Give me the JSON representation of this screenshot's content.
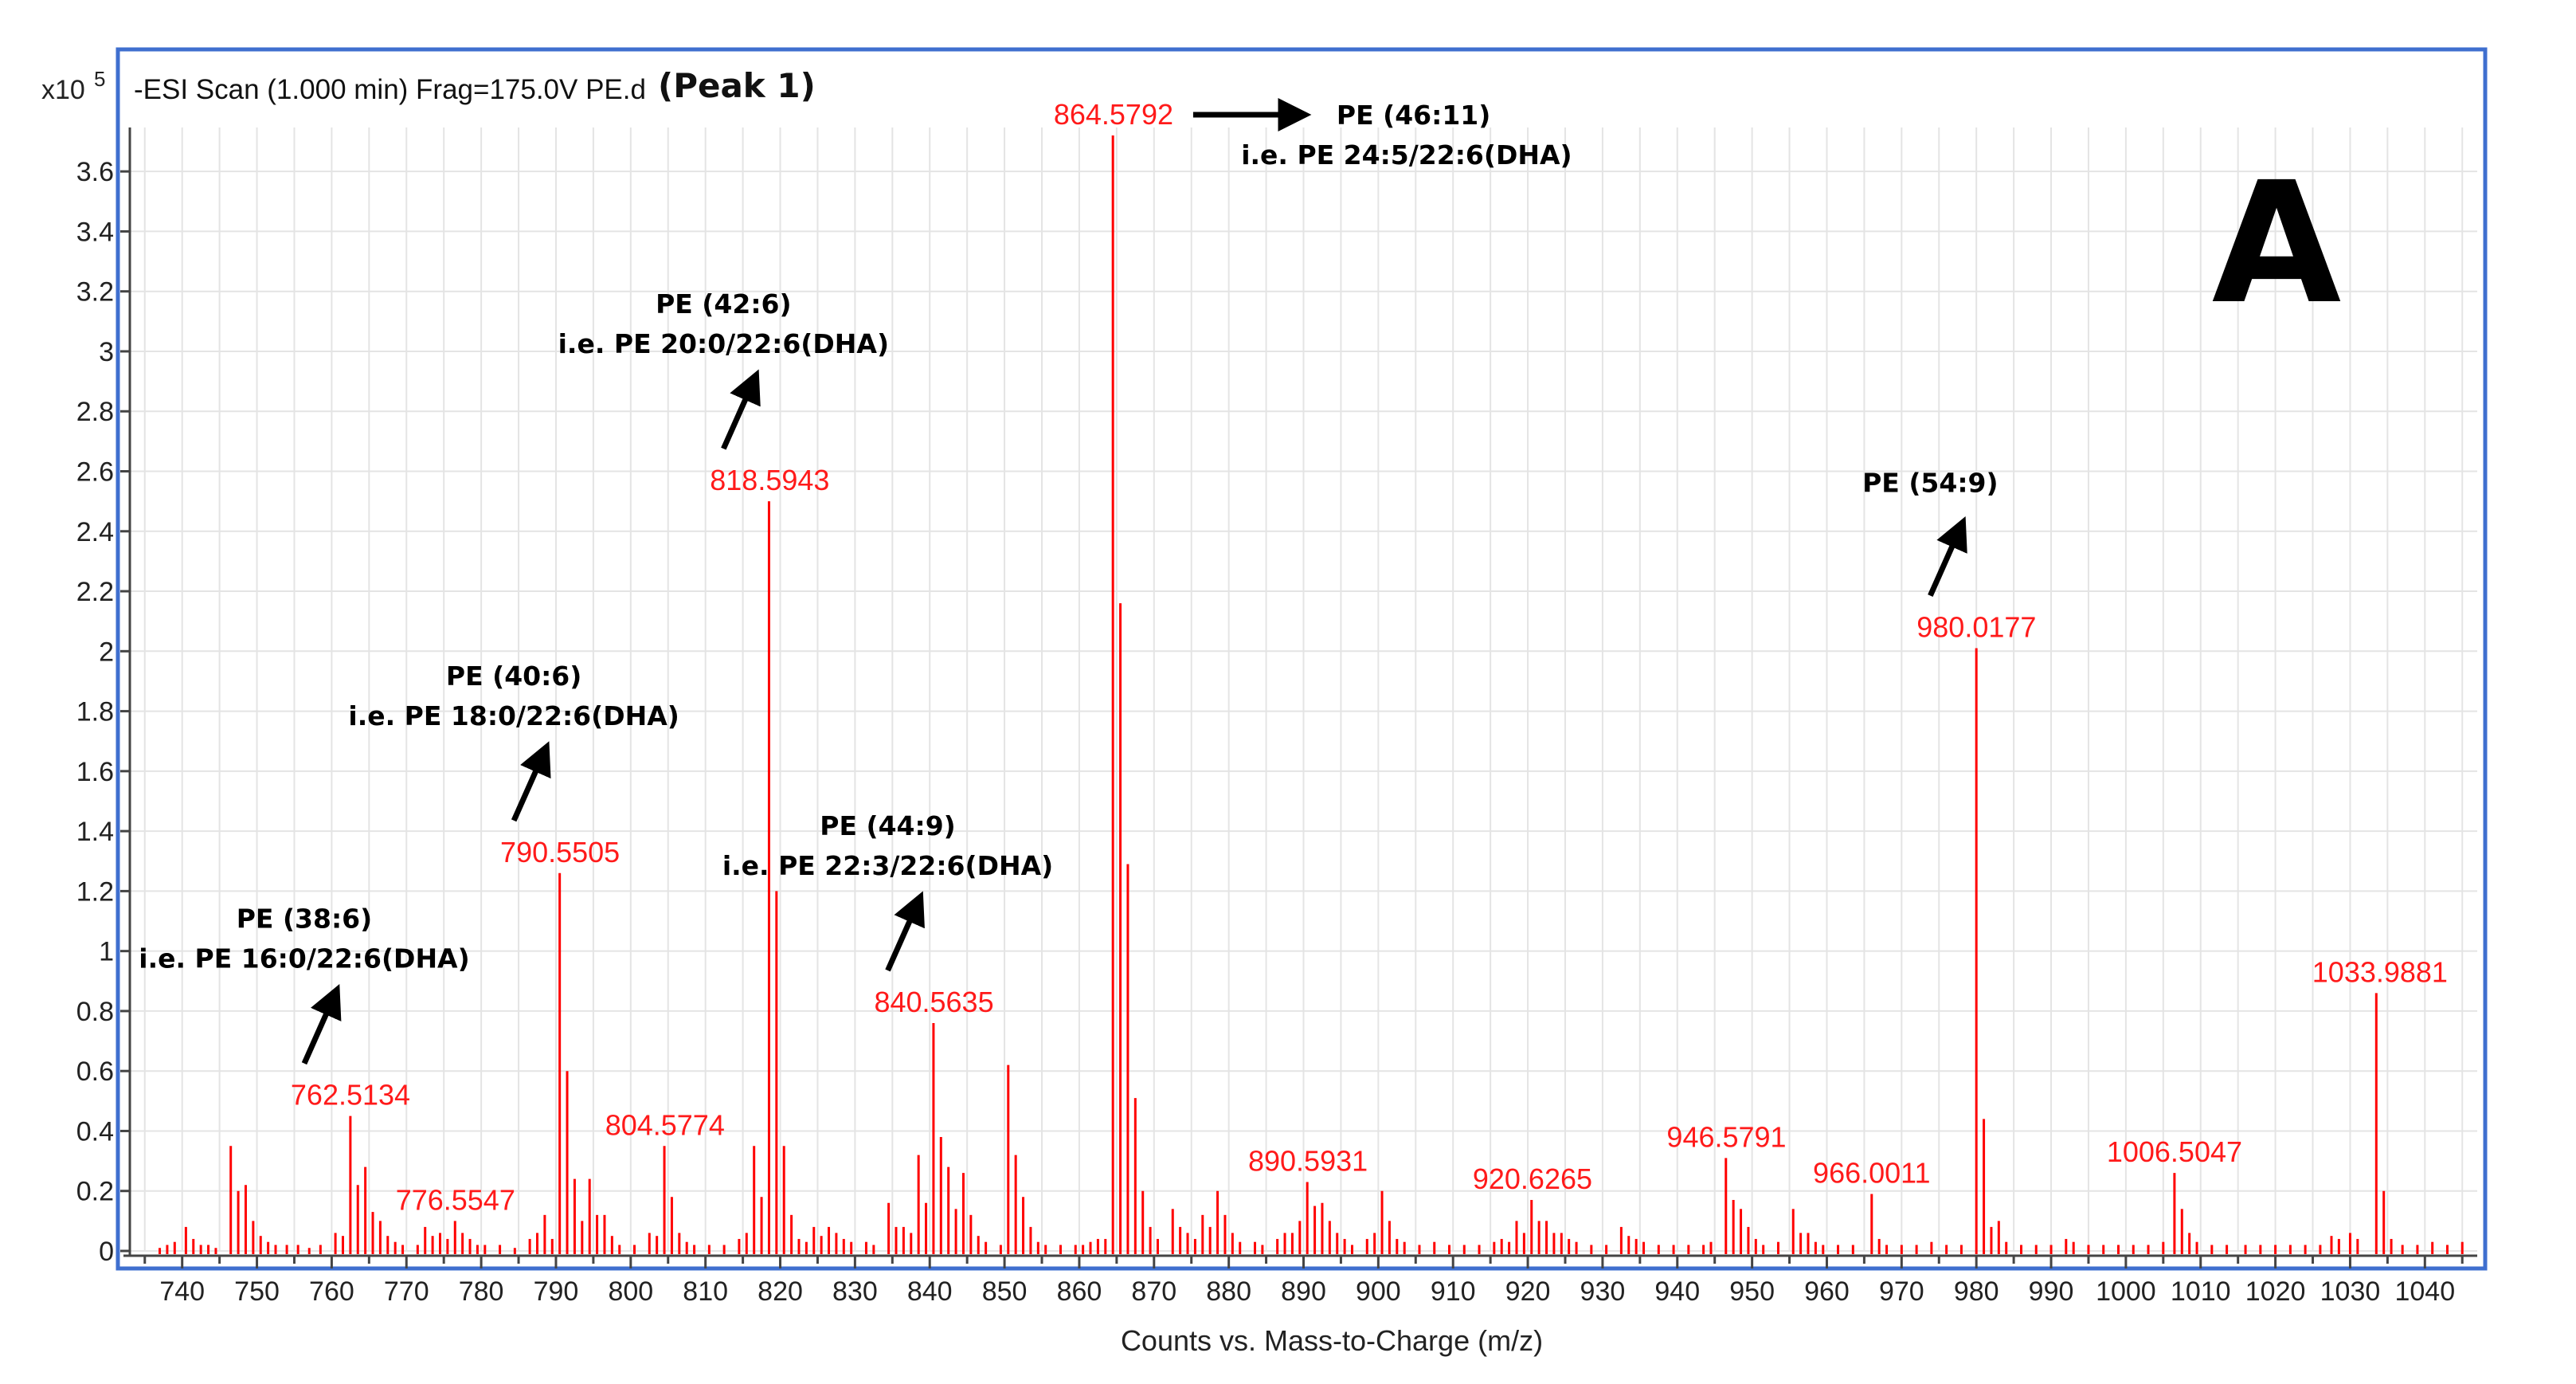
{
  "header": {
    "scale_base": "x10",
    "scale_exp": "5",
    "scan_info": "-ESI Scan (1.000 min) Frag=175.0V PE.d",
    "peak_title": "(Peak 1)"
  },
  "panel_letter": "A",
  "chart_data": {
    "type": "bar",
    "subtype": "mass-spectrum-stick",
    "title": "-ESI Scan (1.000 min) Frag=175.0V PE.d (Peak 1)",
    "xlabel": "Counts vs. Mass-to-Charge (m/z)",
    "ylabel": "x10^5",
    "xlim": [
      733,
      1047
    ],
    "ylim": [
      0,
      3.72
    ],
    "x_ticks": [
      740,
      750,
      760,
      770,
      780,
      790,
      800,
      810,
      820,
      830,
      840,
      850,
      860,
      870,
      880,
      890,
      900,
      910,
      920,
      930,
      940,
      950,
      960,
      970,
      980,
      990,
      1000,
      1010,
      1020,
      1030,
      1040
    ],
    "y_ticks": [
      0,
      0.2,
      0.4,
      0.6,
      0.8,
      1,
      1.2,
      1.4,
      1.6,
      1.8,
      2,
      2.2,
      2.4,
      2.6,
      2.8,
      3,
      3.2,
      3.4,
      3.6
    ],
    "grid": true,
    "color": "#ff0000",
    "labeled_peaks": [
      {
        "mz": 762.5134,
        "intensity": 0.45,
        "label": "762.5134"
      },
      {
        "mz": 776.5547,
        "intensity": 0.1,
        "label": "776.5547"
      },
      {
        "mz": 790.5505,
        "intensity": 1.26,
        "label": "790.5505"
      },
      {
        "mz": 804.5774,
        "intensity": 0.35,
        "label": "804.5774"
      },
      {
        "mz": 818.5943,
        "intensity": 2.5,
        "label": "818.5943"
      },
      {
        "mz": 840.5635,
        "intensity": 0.76,
        "label": "840.5635"
      },
      {
        "mz": 864.5792,
        "intensity": 3.72,
        "label": "864.5792"
      },
      {
        "mz": 890.5931,
        "intensity": 0.23,
        "label": "890.5931"
      },
      {
        "mz": 920.6265,
        "intensity": 0.17,
        "label": "920.6265"
      },
      {
        "mz": 946.5791,
        "intensity": 0.31,
        "label": "946.5791"
      },
      {
        "mz": 966.0011,
        "intensity": 0.19,
        "label": "966.0011"
      },
      {
        "mz": 980.0177,
        "intensity": 2.01,
        "label": "980.0177"
      },
      {
        "mz": 1006.5047,
        "intensity": 0.26,
        "label": "1006.5047"
      },
      {
        "mz": 1033.9881,
        "intensity": 0.86,
        "label": "1033.9881"
      }
    ],
    "peaks": [
      [
        737,
        0.01
      ],
      [
        738,
        0.02
      ],
      [
        739,
        0.03
      ],
      [
        740.5,
        0.08
      ],
      [
        741.5,
        0.04
      ],
      [
        742.5,
        0.02
      ],
      [
        743.5,
        0.02
      ],
      [
        744.5,
        0.01
      ],
      [
        746.5,
        0.35
      ],
      [
        747.5,
        0.2
      ],
      [
        748.5,
        0.22
      ],
      [
        749.5,
        0.1
      ],
      [
        750.5,
        0.05
      ],
      [
        751.5,
        0.03
      ],
      [
        752.5,
        0.02
      ],
      [
        754,
        0.02
      ],
      [
        755.5,
        0.02
      ],
      [
        757,
        0.01
      ],
      [
        758.5,
        0.02
      ],
      [
        760.5,
        0.06
      ],
      [
        761.5,
        0.05
      ],
      [
        762.5,
        0.45
      ],
      [
        763.5,
        0.22
      ],
      [
        764.5,
        0.28
      ],
      [
        765.5,
        0.13
      ],
      [
        766.5,
        0.1
      ],
      [
        767.5,
        0.05
      ],
      [
        768.5,
        0.03
      ],
      [
        769.5,
        0.02
      ],
      [
        771.5,
        0.02
      ],
      [
        772.5,
        0.08
      ],
      [
        773.5,
        0.05
      ],
      [
        774.5,
        0.06
      ],
      [
        775.5,
        0.04
      ],
      [
        776.5,
        0.1
      ],
      [
        777.5,
        0.06
      ],
      [
        778.5,
        0.04
      ],
      [
        779.5,
        0.02
      ],
      [
        780.5,
        0.02
      ],
      [
        782.5,
        0.02
      ],
      [
        784.5,
        0.01
      ],
      [
        786.5,
        0.04
      ],
      [
        787.5,
        0.06
      ],
      [
        788.5,
        0.12
      ],
      [
        789.5,
        0.04
      ],
      [
        790.5,
        1.26
      ],
      [
        791.5,
        0.6
      ],
      [
        792.5,
        0.24
      ],
      [
        793.5,
        0.1
      ],
      [
        794.5,
        0.24
      ],
      [
        795.5,
        0.12
      ],
      [
        796.5,
        0.12
      ],
      [
        797.5,
        0.05
      ],
      [
        798.5,
        0.02
      ],
      [
        800.5,
        0.02
      ],
      [
        802.5,
        0.06
      ],
      [
        803.5,
        0.05
      ],
      [
        804.5,
        0.35
      ],
      [
        805.5,
        0.18
      ],
      [
        806.5,
        0.06
      ],
      [
        807.5,
        0.03
      ],
      [
        808.5,
        0.02
      ],
      [
        810.5,
        0.02
      ],
      [
        812.5,
        0.02
      ],
      [
        814.5,
        0.04
      ],
      [
        815.5,
        0.06
      ],
      [
        816.5,
        0.35
      ],
      [
        817.5,
        0.18
      ],
      [
        818.5,
        2.5
      ],
      [
        819.5,
        1.2
      ],
      [
        820.5,
        0.35
      ],
      [
        821.5,
        0.12
      ],
      [
        822.5,
        0.04
      ],
      [
        823.5,
        0.03
      ],
      [
        824.5,
        0.08
      ],
      [
        825.5,
        0.05
      ],
      [
        826.5,
        0.08
      ],
      [
        827.5,
        0.06
      ],
      [
        828.5,
        0.04
      ],
      [
        829.5,
        0.03
      ],
      [
        831.5,
        0.03
      ],
      [
        832.5,
        0.02
      ],
      [
        834.5,
        0.16
      ],
      [
        835.5,
        0.08
      ],
      [
        836.5,
        0.08
      ],
      [
        837.5,
        0.06
      ],
      [
        838.5,
        0.32
      ],
      [
        839.5,
        0.16
      ],
      [
        840.5,
        0.76
      ],
      [
        841.5,
        0.38
      ],
      [
        842.5,
        0.28
      ],
      [
        843.5,
        0.14
      ],
      [
        844.5,
        0.26
      ],
      [
        845.5,
        0.12
      ],
      [
        846.5,
        0.05
      ],
      [
        847.5,
        0.03
      ],
      [
        849.5,
        0.02
      ],
      [
        850.5,
        0.62
      ],
      [
        851.5,
        0.32
      ],
      [
        852.5,
        0.18
      ],
      [
        853.5,
        0.08
      ],
      [
        854.5,
        0.03
      ],
      [
        855.5,
        0.02
      ],
      [
        857.5,
        0.02
      ],
      [
        859.5,
        0.02
      ],
      [
        860.5,
        0.02
      ],
      [
        861.5,
        0.03
      ],
      [
        862.5,
        0.04
      ],
      [
        863.5,
        0.04
      ],
      [
        864.5,
        3.72
      ],
      [
        865.5,
        2.16
      ],
      [
        866.5,
        1.29
      ],
      [
        867.5,
        0.51
      ],
      [
        868.5,
        0.2
      ],
      [
        869.5,
        0.08
      ],
      [
        870.5,
        0.04
      ],
      [
        872.5,
        0.14
      ],
      [
        873.5,
        0.08
      ],
      [
        874.5,
        0.06
      ],
      [
        875.5,
        0.04
      ],
      [
        876.5,
        0.12
      ],
      [
        877.5,
        0.08
      ],
      [
        878.5,
        0.2
      ],
      [
        879.5,
        0.12
      ],
      [
        880.5,
        0.06
      ],
      [
        881.5,
        0.03
      ],
      [
        883.5,
        0.03
      ],
      [
        884.5,
        0.02
      ],
      [
        886.5,
        0.04
      ],
      [
        887.5,
        0.06
      ],
      [
        888.5,
        0.06
      ],
      [
        889.5,
        0.1
      ],
      [
        890.5,
        0.23
      ],
      [
        891.5,
        0.15
      ],
      [
        892.5,
        0.16
      ],
      [
        893.5,
        0.1
      ],
      [
        894.5,
        0.06
      ],
      [
        895.5,
        0.04
      ],
      [
        896.5,
        0.02
      ],
      [
        898.5,
        0.04
      ],
      [
        899.5,
        0.06
      ],
      [
        900.5,
        0.2
      ],
      [
        901.5,
        0.1
      ],
      [
        902.5,
        0.04
      ],
      [
        903.5,
        0.03
      ],
      [
        905.5,
        0.02
      ],
      [
        907.5,
        0.03
      ],
      [
        909.5,
        0.02
      ],
      [
        911.5,
        0.02
      ],
      [
        913.5,
        0.02
      ],
      [
        915.5,
        0.03
      ],
      [
        916.5,
        0.04
      ],
      [
        917.5,
        0.03
      ],
      [
        918.5,
        0.1
      ],
      [
        919.5,
        0.06
      ],
      [
        920.5,
        0.17
      ],
      [
        921.5,
        0.1
      ],
      [
        922.5,
        0.1
      ],
      [
        923.5,
        0.06
      ],
      [
        924.5,
        0.06
      ],
      [
        925.5,
        0.04
      ],
      [
        926.5,
        0.03
      ],
      [
        928.5,
        0.02
      ],
      [
        930.5,
        0.02
      ],
      [
        932.5,
        0.08
      ],
      [
        933.5,
        0.05
      ],
      [
        934.5,
        0.04
      ],
      [
        935.5,
        0.03
      ],
      [
        937.5,
        0.02
      ],
      [
        939.5,
        0.02
      ],
      [
        941.5,
        0.02
      ],
      [
        943.5,
        0.02
      ],
      [
        944.5,
        0.03
      ],
      [
        946.5,
        0.31
      ],
      [
        947.5,
        0.17
      ],
      [
        948.5,
        0.14
      ],
      [
        949.5,
        0.08
      ],
      [
        950.5,
        0.04
      ],
      [
        951.5,
        0.02
      ],
      [
        953.5,
        0.03
      ],
      [
        955.5,
        0.14
      ],
      [
        956.5,
        0.06
      ],
      [
        957.5,
        0.06
      ],
      [
        958.5,
        0.03
      ],
      [
        959.5,
        0.02
      ],
      [
        961.5,
        0.02
      ],
      [
        963.5,
        0.02
      ],
      [
        966,
        0.19
      ],
      [
        967,
        0.04
      ],
      [
        968,
        0.02
      ],
      [
        970,
        0.02
      ],
      [
        972,
        0.02
      ],
      [
        974,
        0.03
      ],
      [
        976,
        0.02
      ],
      [
        978,
        0.02
      ],
      [
        980,
        2.01
      ],
      [
        981,
        0.44
      ],
      [
        982,
        0.08
      ],
      [
        983,
        0.1
      ],
      [
        984,
        0.03
      ],
      [
        986,
        0.02
      ],
      [
        988,
        0.02
      ],
      [
        990,
        0.02
      ],
      [
        992,
        0.04
      ],
      [
        993,
        0.03
      ],
      [
        995,
        0.02
      ],
      [
        997,
        0.02
      ],
      [
        999,
        0.02
      ],
      [
        1001,
        0.02
      ],
      [
        1003,
        0.02
      ],
      [
        1005,
        0.03
      ],
      [
        1006.5,
        0.26
      ],
      [
        1007.5,
        0.14
      ],
      [
        1008.5,
        0.06
      ],
      [
        1009.5,
        0.03
      ],
      [
        1011.5,
        0.02
      ],
      [
        1013.5,
        0.02
      ],
      [
        1016,
        0.02
      ],
      [
        1018,
        0.02
      ],
      [
        1020,
        0.02
      ],
      [
        1022,
        0.02
      ],
      [
        1024,
        0.02
      ],
      [
        1026,
        0.02
      ],
      [
        1027.5,
        0.05
      ],
      [
        1028.5,
        0.04
      ],
      [
        1030,
        0.06
      ],
      [
        1031,
        0.04
      ],
      [
        1033.5,
        0.86
      ],
      [
        1034.5,
        0.2
      ],
      [
        1035.5,
        0.04
      ],
      [
        1037,
        0.02
      ],
      [
        1039,
        0.02
      ],
      [
        1041,
        0.03
      ],
      [
        1043,
        0.02
      ],
      [
        1045,
        0.03
      ]
    ],
    "annotations": [
      {
        "id": "pe-38-6",
        "line1": "PE (38:6)",
        "line2": "i.e. PE 16:0/22:6(DHA)",
        "peak": "762.5134",
        "arrow": "up"
      },
      {
        "id": "pe-40-6",
        "line1": "PE (40:6)",
        "line2": "i.e. PE 18:0/22:6(DHA)",
        "peak": "790.5505",
        "arrow": "up"
      },
      {
        "id": "pe-42-6",
        "line1": "PE (42:6)",
        "line2": "i.e. PE 20:0/22:6(DHA)",
        "peak": "818.5943",
        "arrow": "up"
      },
      {
        "id": "pe-44-9",
        "line1": "PE (44:9)",
        "line2": "i.e. PE 22:3/22:6(DHA)",
        "peak": "840.5635",
        "arrow": "up"
      },
      {
        "id": "pe-46-11",
        "line1": "PE (46:11)",
        "line2": "i.e. PE 24:5/22:6(DHA)",
        "peak": "864.5792",
        "arrow": "right"
      },
      {
        "id": "pe-54-9",
        "line1": "PE (54:9)",
        "line2": "",
        "peak": "980.0177",
        "arrow": "up"
      }
    ]
  }
}
